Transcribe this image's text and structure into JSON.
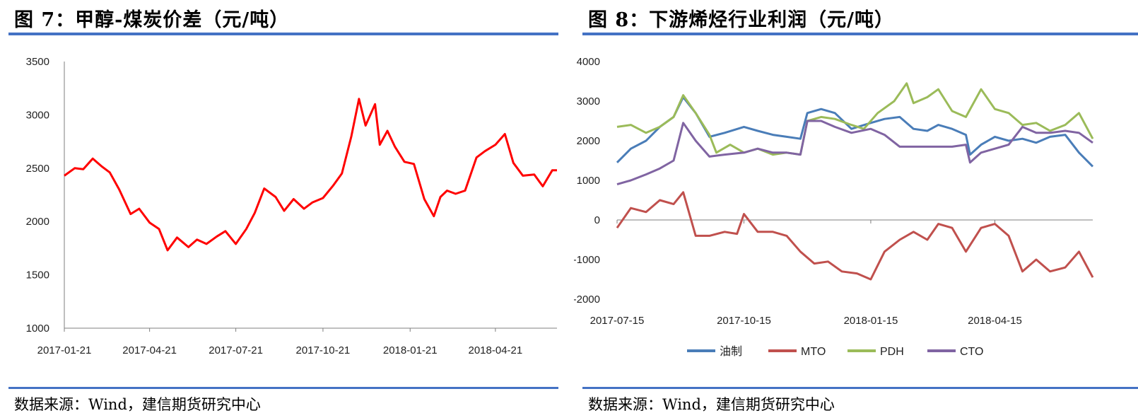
{
  "panels": [
    {
      "title": "图 7：甲醇-煤炭价差（元/吨）",
      "source": "数据来源：Wind，建信期货研究中心"
    },
    {
      "title": "图 8：下游烯烃行业利润（元/吨）",
      "source": "数据来源：Wind，建信期货研究中心"
    }
  ],
  "chart_data": [
    {
      "type": "line",
      "title": "图 7：甲醇-煤炭价差（元/吨）",
      "xlabel": "",
      "ylabel": "",
      "x_start": "2017-01-21",
      "x_end": "2018-06-25",
      "ylim": [
        1000,
        3500
      ],
      "y_ticks": [
        1000,
        1500,
        2000,
        2500,
        3000,
        3500
      ],
      "x_tick_labels": [
        "2017-01-21",
        "2017-04-21",
        "2017-07-21",
        "2017-10-21",
        "2018-01-21",
        "2018-04-21"
      ],
      "grid": false,
      "legend": "none",
      "series": [
        {
          "color": "#FF0000",
          "x": [
            "2017-01-21",
            "2017-02-01",
            "2017-02-10",
            "2017-02-20",
            "2017-03-01",
            "2017-03-10",
            "2017-03-20",
            "2017-04-01",
            "2017-04-10",
            "2017-04-21",
            "2017-05-01",
            "2017-05-10",
            "2017-05-20",
            "2017-06-01",
            "2017-06-10",
            "2017-06-20",
            "2017-07-01",
            "2017-07-10",
            "2017-07-21",
            "2017-08-01",
            "2017-08-10",
            "2017-08-20",
            "2017-09-01",
            "2017-09-10",
            "2017-09-20",
            "2017-10-01",
            "2017-10-10",
            "2017-10-21",
            "2017-11-01",
            "2017-11-10",
            "2017-11-20",
            "2017-11-28",
            "2017-12-05",
            "2017-12-15",
            "2017-12-20",
            "2017-12-28",
            "2018-01-05",
            "2018-01-15",
            "2018-01-25",
            "2018-02-05",
            "2018-02-15",
            "2018-02-22",
            "2018-03-01",
            "2018-03-10",
            "2018-03-20",
            "2018-04-01",
            "2018-04-10",
            "2018-04-21",
            "2018-05-01",
            "2018-05-10",
            "2018-05-20",
            "2018-06-01",
            "2018-06-10",
            "2018-06-20",
            "2018-06-25"
          ],
          "values": [
            2430,
            2500,
            2490,
            2590,
            2520,
            2460,
            2300,
            2070,
            2120,
            1990,
            1930,
            1730,
            1850,
            1760,
            1830,
            1790,
            1860,
            1910,
            1790,
            1930,
            2080,
            2310,
            2230,
            2100,
            2210,
            2120,
            2180,
            2220,
            2340,
            2450,
            2800,
            3150,
            2900,
            3100,
            2720,
            2850,
            2700,
            2560,
            2540,
            2210,
            2050,
            2230,
            2290,
            2260,
            2290,
            2600,
            2660,
            2720,
            2820,
            2550,
            2430,
            2440,
            2330,
            2480,
            2480
          ]
        }
      ]
    },
    {
      "type": "line",
      "title": "图 8：下游烯烃行业利润（元/吨）",
      "xlabel": "",
      "ylabel": "",
      "x_start": "2017-07-15",
      "x_end": "2018-06-25",
      "ylim": [
        -2000,
        4000
      ],
      "y_ticks": [
        -2000,
        -1000,
        0,
        1000,
        2000,
        3000,
        4000
      ],
      "x_tick_labels": [
        "2017-07-15",
        "2017-10-15",
        "2018-01-15",
        "2018-04-15"
      ],
      "grid": false,
      "legend": "bottom",
      "series": [
        {
          "name": "油制",
          "color": "#4A7DB8",
          "x": [
            "2017-07-15",
            "2017-07-25",
            "2017-08-05",
            "2017-08-15",
            "2017-08-25",
            "2017-09-01",
            "2017-09-10",
            "2017-09-20",
            "2017-10-01",
            "2017-10-15",
            "2017-10-25",
            "2017-11-05",
            "2017-11-15",
            "2017-11-25",
            "2017-11-30",
            "2017-12-10",
            "2017-12-20",
            "2018-01-01",
            "2018-01-15",
            "2018-01-25",
            "2018-02-05",
            "2018-02-15",
            "2018-02-25",
            "2018-03-05",
            "2018-03-15",
            "2018-03-25",
            "2018-03-28",
            "2018-04-05",
            "2018-04-15",
            "2018-04-25",
            "2018-05-05",
            "2018-05-15",
            "2018-05-25",
            "2018-06-05",
            "2018-06-15",
            "2018-06-25"
          ],
          "values": [
            1450,
            1800,
            2000,
            2350,
            2600,
            3100,
            2700,
            2100,
            2200,
            2350,
            2250,
            2150,
            2100,
            2050,
            2700,
            2800,
            2700,
            2300,
            2450,
            2550,
            2600,
            2300,
            2250,
            2400,
            2300,
            2150,
            1650,
            1900,
            2100,
            2000,
            2050,
            1950,
            2100,
            2150,
            1700,
            1350
          ]
        },
        {
          "name": "MTO",
          "color": "#C0504D",
          "x": [
            "2017-07-15",
            "2017-07-25",
            "2017-08-05",
            "2017-08-15",
            "2017-08-25",
            "2017-09-01",
            "2017-09-10",
            "2017-09-20",
            "2017-10-01",
            "2017-10-10",
            "2017-10-15",
            "2017-10-25",
            "2017-11-05",
            "2017-11-15",
            "2017-11-25",
            "2017-12-05",
            "2017-12-15",
            "2017-12-25",
            "2018-01-05",
            "2018-01-15",
            "2018-01-25",
            "2018-02-05",
            "2018-02-15",
            "2018-02-25",
            "2018-03-05",
            "2018-03-15",
            "2018-03-25",
            "2018-04-05",
            "2018-04-15",
            "2018-04-25",
            "2018-05-05",
            "2018-05-15",
            "2018-05-25",
            "2018-06-05",
            "2018-06-15",
            "2018-06-25"
          ],
          "values": [
            -200,
            300,
            200,
            500,
            400,
            700,
            -400,
            -400,
            -300,
            -350,
            150,
            -300,
            -300,
            -400,
            -800,
            -1100,
            -1050,
            -1300,
            -1350,
            -1500,
            -800,
            -500,
            -300,
            -500,
            -100,
            -200,
            -800,
            -200,
            -100,
            -400,
            -1300,
            -1000,
            -1300,
            -1200,
            -800,
            -1450
          ]
        },
        {
          "name": "PDH",
          "color": "#9BBB59",
          "x": [
            "2017-07-15",
            "2017-07-25",
            "2017-08-05",
            "2017-08-15",
            "2017-08-25",
            "2017-09-01",
            "2017-09-10",
            "2017-09-20",
            "2017-09-25",
            "2017-10-05",
            "2017-10-15",
            "2017-10-25",
            "2017-11-05",
            "2017-11-15",
            "2017-11-25",
            "2017-11-30",
            "2017-12-10",
            "2017-12-20",
            "2018-01-01",
            "2018-01-10",
            "2018-01-20",
            "2018-02-01",
            "2018-02-10",
            "2018-02-15",
            "2018-02-25",
            "2018-03-05",
            "2018-03-15",
            "2018-03-25",
            "2018-04-05",
            "2018-04-15",
            "2018-04-25",
            "2018-05-05",
            "2018-05-15",
            "2018-05-25",
            "2018-06-05",
            "2018-06-15",
            "2018-06-25"
          ],
          "values": [
            2350,
            2400,
            2200,
            2350,
            2600,
            3150,
            2700,
            2150,
            1700,
            1900,
            1700,
            1800,
            1650,
            1700,
            1650,
            2500,
            2600,
            2550,
            2400,
            2300,
            2700,
            3000,
            3450,
            2950,
            3100,
            3300,
            2750,
            2600,
            3300,
            2800,
            2700,
            2400,
            2450,
            2250,
            2400,
            2700,
            2050
          ]
        },
        {
          "name": "CTO",
          "color": "#8064A2",
          "x": [
            "2017-07-15",
            "2017-07-25",
            "2017-08-05",
            "2017-08-15",
            "2017-08-25",
            "2017-09-01",
            "2017-09-10",
            "2017-09-20",
            "2017-10-01",
            "2017-10-15",
            "2017-10-25",
            "2017-11-05",
            "2017-11-15",
            "2017-11-25",
            "2017-11-30",
            "2017-12-10",
            "2017-12-20",
            "2018-01-01",
            "2018-01-15",
            "2018-01-25",
            "2018-02-05",
            "2018-02-15",
            "2018-02-25",
            "2018-03-05",
            "2018-03-15",
            "2018-03-25",
            "2018-03-28",
            "2018-04-05",
            "2018-04-15",
            "2018-04-25",
            "2018-05-05",
            "2018-05-15",
            "2018-05-25",
            "2018-06-05",
            "2018-06-15",
            "2018-06-25"
          ],
          "values": [
            900,
            1000,
            1150,
            1300,
            1500,
            2450,
            2000,
            1600,
            1650,
            1700,
            1800,
            1700,
            1700,
            1650,
            2500,
            2500,
            2350,
            2200,
            2300,
            2150,
            1850,
            1850,
            1850,
            1850,
            1850,
            1900,
            1450,
            1700,
            1800,
            1900,
            2350,
            2200,
            2200,
            2250,
            2200,
            1950
          ]
        }
      ]
    }
  ]
}
